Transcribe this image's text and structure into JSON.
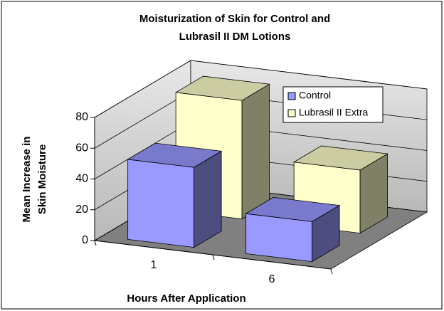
{
  "chart_data": {
    "type": "bar3d",
    "title": [
      "Moisturization of Skin for Control and",
      "Lubrasil II DM Lotions"
    ],
    "ylabel": [
      "Mean Increase in",
      "Skin Moisture"
    ],
    "xlabel": "Hours After Application",
    "categories": [
      "1",
      "6"
    ],
    "series": [
      {
        "name": "Control",
        "color": "#9999ff",
        "values": [
          52,
          26
        ]
      },
      {
        "name": "Lubrasil II Extra",
        "color": "#ffffcc",
        "values": [
          77,
          41
        ]
      }
    ],
    "ylim": [
      0,
      80
    ],
    "yticks": [
      0,
      20,
      40,
      60,
      80
    ],
    "grid": true,
    "legend": "upper right"
  }
}
